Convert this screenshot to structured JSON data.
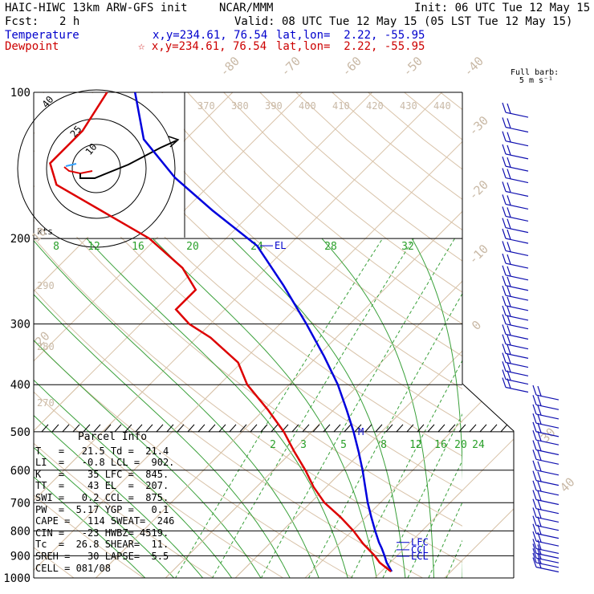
{
  "header": {
    "model": "HAIC-HIWC 13km ARW-GFS init",
    "org": "NCAR/MMM",
    "init": "Init: 06 UTC Tue 12 May 15",
    "fcst_label": "Fcst:",
    "fcst_value": "2 h",
    "valid": "Valid: 08 UTC Tue 12 May 15 (05 LST Tue 12 May 15)",
    "temp_label": "Temperature",
    "temp_xy": "x,y=234.61, 76.54",
    "temp_latlon": "lat,lon=  2.22, -55.95",
    "dew_label": "Dewpoint",
    "dew_xy": "☆ x,y=234.61, 76.54",
    "dew_latlon": "lat,lon=  2.22, -55.95"
  },
  "barb_note": "Full barb:\n 5 m s⁻¹",
  "hodograph": {
    "units": "kts",
    "ring_labels": [
      "10",
      "25",
      "40"
    ]
  },
  "parcel": {
    "title": "Parcel Info",
    "rows": [
      "T   =   21.5 Td =  21.4",
      "LI  =   -0.8 LCL =  902.",
      "K   =    35 LFC =  845.",
      "TT  =    43 EL  =  207.",
      "SWI =   0.2 CCL =  875.",
      "PW  =  5.17 YGP =   0.1",
      "CAPE =   114 SWEAT=  246",
      "CIN =   -23 HWBZ= 4519.",
      "Tc  =  26.8 SHEAR=  11.",
      "SREH =   30 LAPSE=  5.5",
      "CELL = 081/08"
    ]
  },
  "chart_data": {
    "type": "line",
    "title": "",
    "y_axis": "pressure (hPa)",
    "yscale": "log",
    "ylim": [
      1000,
      100
    ],
    "pressure_ticks": [
      100,
      200,
      300,
      400,
      500,
      600,
      700,
      800,
      900,
      1000
    ],
    "isotherm_labels_deg_c": [
      -80,
      -70,
      -60,
      -50,
      -40,
      -30,
      -20,
      -10,
      0,
      10,
      20,
      30,
      40
    ],
    "theta_labels_k": [
      270,
      280,
      290,
      380,
      390,
      400,
      410,
      420,
      430,
      440
    ],
    "top_theta_labels": [
      "370",
      "380",
      "390",
      "400",
      "410",
      "420",
      "430",
      "440"
    ],
    "mixing_ratio_labels_upper": [
      "8",
      "12",
      "16",
      "20",
      "24",
      "28",
      "32"
    ],
    "mixing_ratio_labels_lower": [
      "2",
      "3",
      "5",
      "8",
      "12",
      "16",
      "20",
      "24"
    ],
    "series": [
      {
        "name": "Temperature",
        "color": "#0000dd",
        "points": [
          [
            970,
            21.5
          ],
          [
            930,
            19.5
          ],
          [
            900,
            18.2
          ],
          [
            870,
            16.8
          ],
          [
            845,
            15.5
          ],
          [
            800,
            13.3
          ],
          [
            750,
            10.8
          ],
          [
            700,
            8.2
          ],
          [
            650,
            5.6
          ],
          [
            600,
            2.8
          ],
          [
            550,
            -0.4
          ],
          [
            500,
            -4.0
          ],
          [
            450,
            -8.2
          ],
          [
            400,
            -13.0
          ],
          [
            350,
            -19.0
          ],
          [
            300,
            -26.2
          ],
          [
            250,
            -35.0
          ],
          [
            207,
            -44.5
          ],
          [
            175,
            -56.0
          ],
          [
            150,
            -66.0
          ],
          [
            125,
            -76.0
          ],
          [
            100,
            -84.0
          ]
        ]
      },
      {
        "name": "Dewpoint",
        "color": "#dd0000",
        "points": [
          [
            970,
            21.4
          ],
          [
            930,
            18.5
          ],
          [
            900,
            16.8
          ],
          [
            850,
            13.4
          ],
          [
            800,
            10.2
          ],
          [
            750,
            6.4
          ],
          [
            700,
            2.0
          ],
          [
            650,
            -1.8
          ],
          [
            600,
            -5.4
          ],
          [
            550,
            -9.6
          ],
          [
            500,
            -14.0
          ],
          [
            450,
            -19.5
          ],
          [
            400,
            -26.0
          ],
          [
            360,
            -30.5
          ],
          [
            320,
            -38.0
          ],
          [
            300,
            -43.0
          ],
          [
            280,
            -47.0
          ],
          [
            255,
            -47.0
          ],
          [
            230,
            -52.0
          ],
          [
            200,
            -61.0
          ],
          [
            175,
            -72.0
          ],
          [
            155,
            -82.0
          ],
          [
            140,
            -86.0
          ],
          [
            120,
            -86.0
          ],
          [
            100,
            -88.0
          ]
        ]
      }
    ],
    "levels": [
      {
        "label": "EL",
        "pressure": 207
      },
      {
        "label": "LFC",
        "pressure": 845
      },
      {
        "label": "CCL",
        "pressure": 875
      },
      {
        "label": "LCL",
        "pressure": 902
      }
    ],
    "melting_marker": {
      "label": "M",
      "pressure": 500
    },
    "wind_barbs": [
      {
        "p": 110
      },
      {
        "p": 118
      },
      {
        "p": 126
      },
      {
        "p": 134
      },
      {
        "p": 142
      },
      {
        "p": 150
      },
      {
        "p": 160
      },
      {
        "p": 170
      },
      {
        "p": 180
      },
      {
        "p": 190
      },
      {
        "p": 200
      },
      {
        "p": 212
      },
      {
        "p": 225
      },
      {
        "p": 238
      },
      {
        "p": 250
      },
      {
        "p": 262
      },
      {
        "p": 275
      },
      {
        "p": 288
      },
      {
        "p": 300
      },
      {
        "p": 315
      },
      {
        "p": 330
      },
      {
        "p": 345
      },
      {
        "p": 360
      },
      {
        "p": 375
      },
      {
        "p": 390
      },
      {
        "p": 405
      },
      {
        "p": 420
      },
      {
        "p": 440
      },
      {
        "p": 460
      },
      {
        "p": 480
      },
      {
        "p": 500
      },
      {
        "p": 520
      },
      {
        "p": 545
      },
      {
        "p": 570
      },
      {
        "p": 600
      },
      {
        "p": 630
      },
      {
        "p": 660
      },
      {
        "p": 690
      },
      {
        "p": 720
      },
      {
        "p": 750
      },
      {
        "p": 780
      },
      {
        "p": 810
      },
      {
        "p": 840
      },
      {
        "p": 870
      },
      {
        "p": 890
      },
      {
        "p": 910
      },
      {
        "p": 930
      },
      {
        "p": 950
      }
    ]
  }
}
